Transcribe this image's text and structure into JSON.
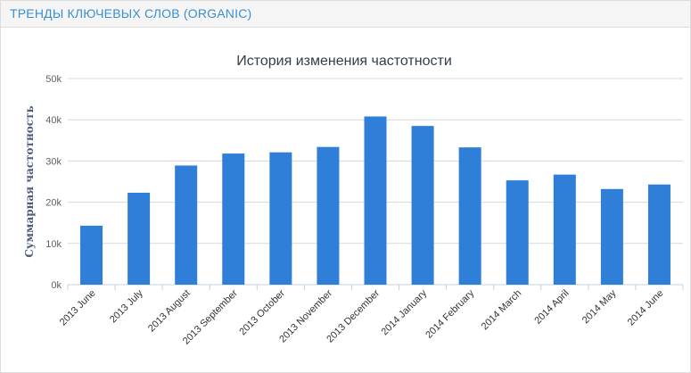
{
  "panel": {
    "title": "ТРЕНДЫ КЛЮЧЕВЫХ СЛОВ (ORGANIC)"
  },
  "colors": {
    "bar": "#2f7ed8",
    "grid": "#d8d8d8",
    "axis": "#c0d0e0",
    "header_bg": "#f5f5f5",
    "header_text": "#3a8fd0"
  },
  "chart_data": {
    "type": "bar",
    "title": "История изменения частотности",
    "xlabel": "",
    "ylabel": "Суммарная частотность",
    "ylim": [
      0,
      50000
    ],
    "yticks": [
      0,
      10000,
      20000,
      30000,
      40000,
      50000
    ],
    "ytick_labels": [
      "0k",
      "10k",
      "20k",
      "30k",
      "40k",
      "50k"
    ],
    "grid": true,
    "legend": "none",
    "categories": [
      "2013 June",
      "2013 July",
      "2013 August",
      "2013 September",
      "2013 October",
      "2013 November",
      "2013 December",
      "2014 January",
      "2014 February",
      "2014 March",
      "2014 April",
      "2014 May",
      "2014 June"
    ],
    "values": [
      14300,
      22300,
      28900,
      31800,
      32100,
      33400,
      40800,
      38500,
      33300,
      25300,
      26700,
      23200,
      24300
    ]
  }
}
